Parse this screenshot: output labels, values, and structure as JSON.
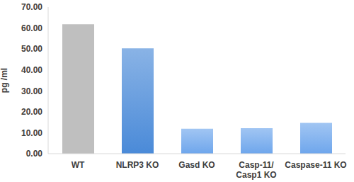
{
  "chart_data": {
    "type": "bar",
    "y_label": "pg /ml",
    "categories": [
      "WT",
      "NLRP3 KO",
      "Gasd KO",
      "Casp-11/ Casp1 KO",
      "Caspase-11 KO"
    ],
    "values": [
      61.8,
      50.3,
      11.9,
      12.2,
      14.7
    ],
    "colors": [
      "#bfbfbf",
      "#4a8ad8",
      "#6ea6ec",
      "#6ea6ec",
      "#6ea6ec"
    ],
    "ylim": [
      0,
      70
    ],
    "yticks": [
      {
        "value": 0,
        "label": "0.00"
      },
      {
        "value": 10,
        "label": "10.00"
      },
      {
        "value": 20,
        "label": "20.00"
      },
      {
        "value": 30,
        "label": "30.00"
      },
      {
        "value": 40,
        "label": "40.00"
      },
      {
        "value": 50,
        "label": "50.00"
      },
      {
        "value": 60,
        "label": "60.00"
      },
      {
        "value": 70,
        "label": "70.00"
      }
    ],
    "grid": false
  }
}
